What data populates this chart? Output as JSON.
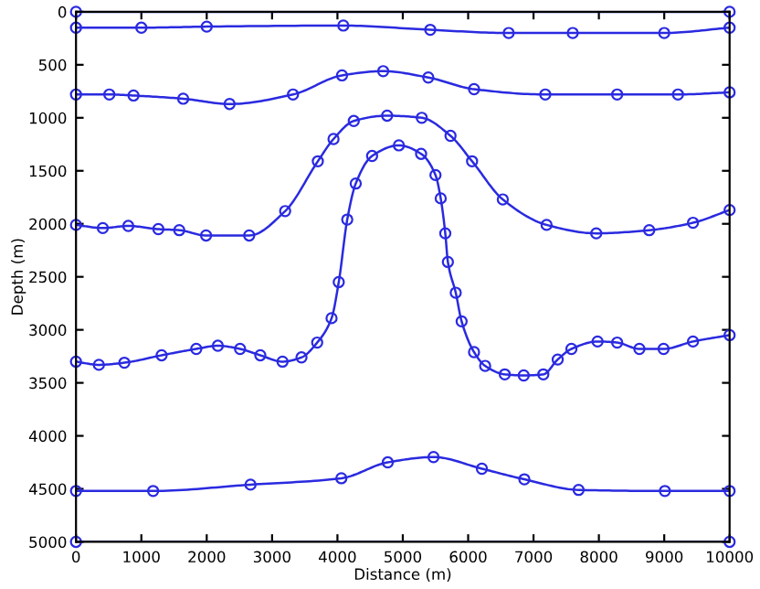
{
  "chart_data": {
    "type": "line",
    "xlabel": "Distance (m)",
    "ylabel": "Depth (m)",
    "marker": "circle",
    "line_style": "solid",
    "grid": false,
    "legend": false,
    "xlim": [
      0,
      10000
    ],
    "ylim": [
      5000,
      0
    ],
    "xticks": [
      0,
      1000,
      2000,
      3000,
      4000,
      5000,
      6000,
      7000,
      8000,
      9000,
      10000
    ],
    "yticks": [
      0,
      500,
      1000,
      1500,
      2000,
      2500,
      3000,
      3500,
      4000,
      4500,
      5000
    ],
    "series": [
      {
        "color": "#2a2ae0",
        "x": [
          0,
          10000
        ],
        "values": [
          0,
          0
        ]
      },
      {
        "color": "#2a2ae0",
        "x": [
          0,
          1000,
          2000,
          4090,
          5420,
          6620,
          7600,
          9000,
          10000
        ],
        "values": [
          150,
          150,
          140,
          130,
          170,
          200,
          200,
          200,
          150
        ]
      },
      {
        "color": "#2a2ae0",
        "x": [
          0,
          510,
          880,
          1640,
          2350,
          3320,
          4070,
          4700,
          5390,
          6090,
          7180,
          8280,
          9210,
          10000
        ],
        "values": [
          780,
          780,
          790,
          820,
          870,
          780,
          600,
          560,
          620,
          730,
          780,
          780,
          780,
          760
        ]
      },
      {
        "color": "#2a2ae0",
        "x": [
          0,
          410,
          800,
          1260,
          1580,
          1990,
          2650,
          3200,
          3700,
          3940,
          4250,
          4760,
          5290,
          5730,
          6060,
          6530,
          7200,
          7960,
          8770,
          9440,
          10000
        ],
        "values": [
          2010,
          2040,
          2020,
          2050,
          2060,
          2110,
          2110,
          1880,
          1410,
          1200,
          1030,
          980,
          1000,
          1170,
          1410,
          1770,
          2010,
          2090,
          2060,
          1990,
          1870
        ]
      },
      {
        "color": "#2a2ae0",
        "x": [
          0,
          350,
          740,
          1310,
          1840,
          2170,
          2510,
          2820,
          3160,
          3450,
          3690,
          3910,
          4020,
          4150,
          4280,
          4530,
          4940,
          5280,
          5500,
          5580,
          5650,
          5690,
          5810,
          5900,
          6090,
          6260,
          6560,
          6850,
          7150,
          7370,
          7580,
          7980,
          8280,
          8620,
          8990,
          9440,
          10000
        ],
        "values": [
          3300,
          3330,
          3310,
          3240,
          3180,
          3150,
          3180,
          3240,
          3300,
          3260,
          3120,
          2890,
          2550,
          1960,
          1620,
          1360,
          1260,
          1340,
          1540,
          1760,
          2090,
          2360,
          2650,
          2920,
          3210,
          3340,
          3420,
          3430,
          3420,
          3280,
          3180,
          3110,
          3120,
          3180,
          3180,
          3110,
          3050
        ]
      },
      {
        "color": "#2a2ae0",
        "x": [
          0,
          1180,
          2670,
          4060,
          4770,
          5470,
          6210,
          6860,
          7690,
          9010,
          10000
        ],
        "values": [
          4520,
          4520,
          4460,
          4400,
          4250,
          4200,
          4310,
          4410,
          4510,
          4520,
          4520
        ]
      },
      {
        "color": "#2a2ae0",
        "x": [
          0,
          10000
        ],
        "values": [
          5000,
          5000
        ]
      }
    ]
  }
}
